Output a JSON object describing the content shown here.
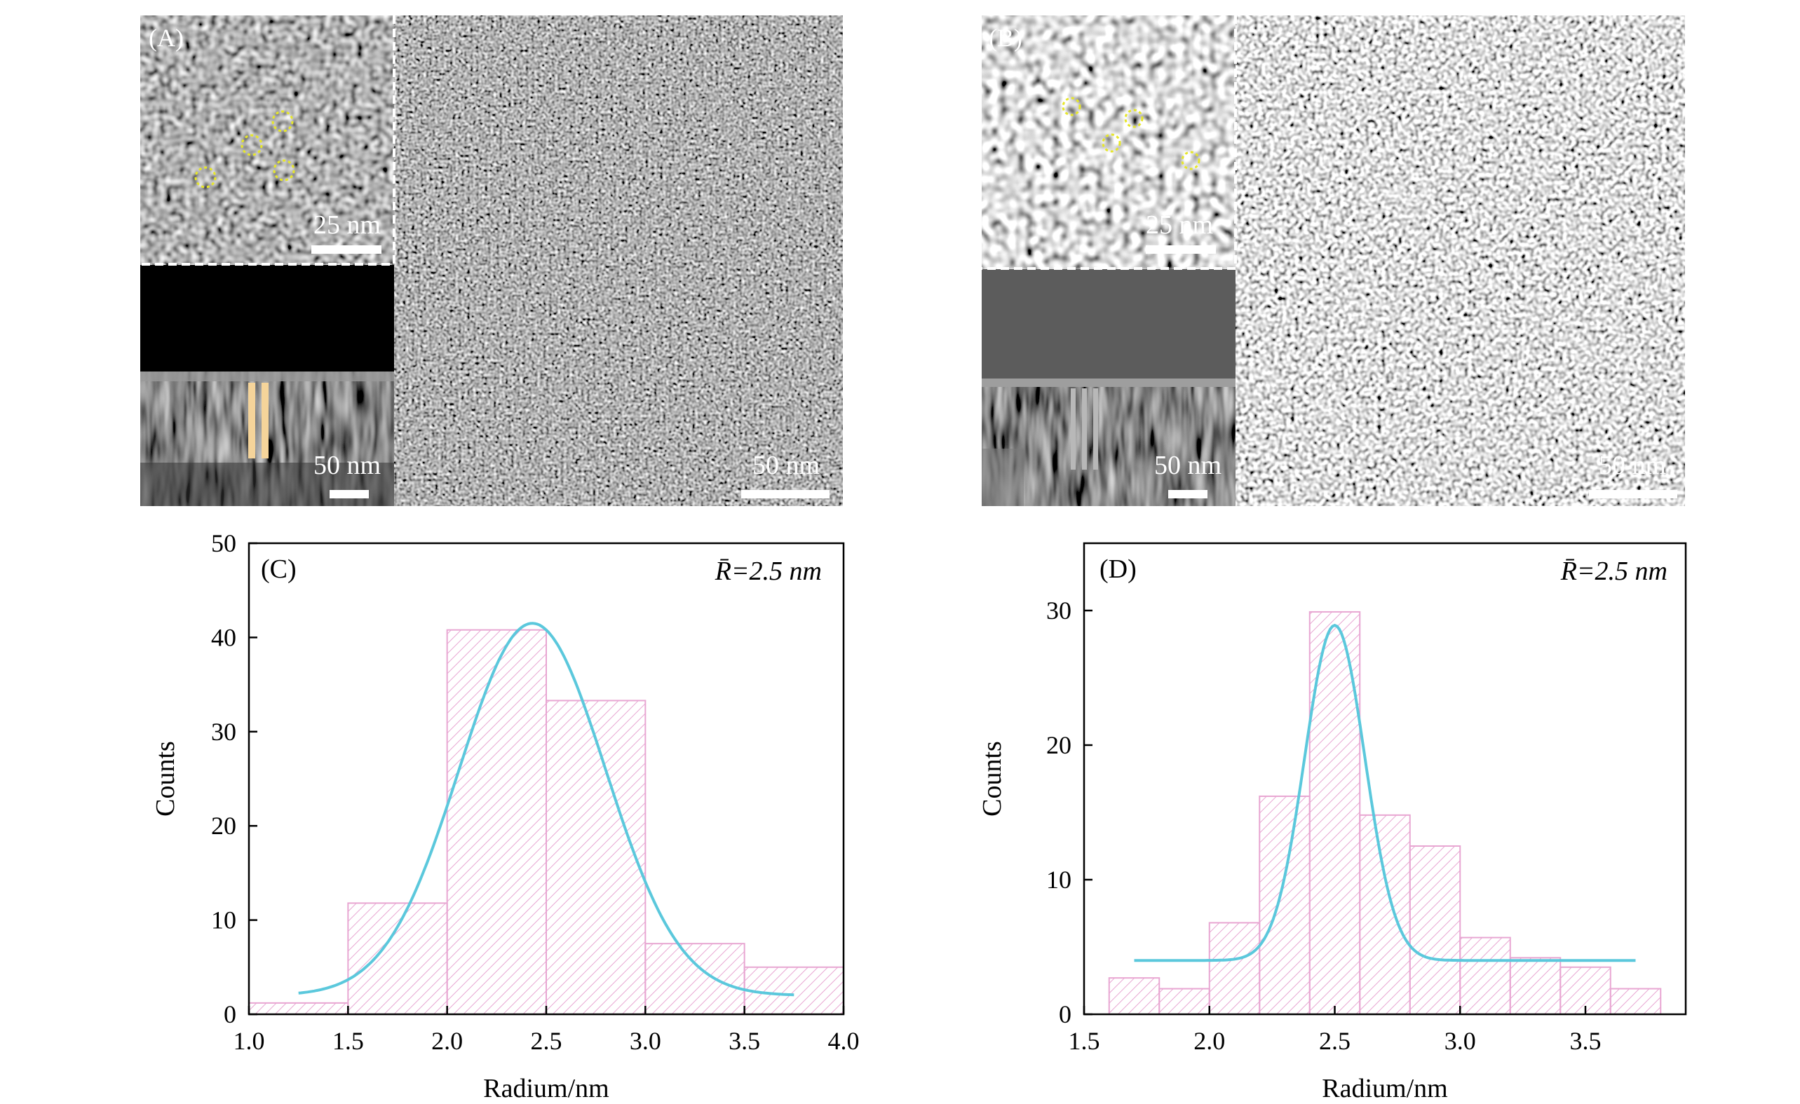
{
  "panels": {
    "A": {
      "label": "(A)",
      "inset_scalebar": "25 nm",
      "cross_section_scalebar": "50 nm",
      "main_scalebar": "50 nm"
    },
    "B": {
      "label": "(B)",
      "inset_scalebar": "25 nm",
      "cross_section_scalebar": "50 nm",
      "main_scalebar": "50 nm"
    }
  },
  "colors": {
    "bar_edge": "#e8a6d2",
    "bar_hatch": "#e8a6d2",
    "fit_curve": "#5bc8dc",
    "circle_marker": "#e6e62a",
    "column_marker_A": "#f5d49a",
    "column_marker_B": "#b8b8b8"
  },
  "chart_data": [
    {
      "panel_label": "(C)",
      "type": "bar",
      "annotation": "R̄=2.5 nm",
      "xlabel": "Radium/nm",
      "ylabel": "Counts",
      "xlim": [
        1.0,
        4.0
      ],
      "ylim": [
        0,
        50
      ],
      "xticks": [
        "1.0",
        "1.5",
        "2.0",
        "2.5",
        "3.0",
        "3.5",
        "4.0"
      ],
      "yticks": [
        "0",
        "10",
        "20",
        "30",
        "40",
        "50"
      ],
      "bins": [
        {
          "x0": 1.0,
          "x1": 1.5,
          "count": 1.2
        },
        {
          "x0": 1.5,
          "x1": 2.0,
          "count": 11.8
        },
        {
          "x0": 2.0,
          "x1": 2.5,
          "count": 40.8
        },
        {
          "x0": 2.5,
          "x1": 3.0,
          "count": 33.3
        },
        {
          "x0": 3.0,
          "x1": 3.5,
          "count": 7.5
        },
        {
          "x0": 3.5,
          "x1": 4.0,
          "count": 5.0
        }
      ],
      "fit": {
        "type": "gaussian",
        "base": 2.0,
        "amplitude": 39.5,
        "center": 2.43,
        "sigma": 0.37,
        "x_range": [
          1.25,
          3.75
        ]
      },
      "grid": false,
      "legend": "none"
    },
    {
      "panel_label": "(D)",
      "type": "bar",
      "annotation": "R̄=2.5 nm",
      "xlabel": "Radium/nm",
      "ylabel": "Counts",
      "xlim": [
        1.5,
        3.9
      ],
      "ylim": [
        0,
        35
      ],
      "xticks": [
        "1.5",
        "2.0",
        "2.5",
        "3.0",
        "3.5"
      ],
      "yticks": [
        "0",
        "10",
        "20",
        "30"
      ],
      "bins": [
        {
          "x0": 1.6,
          "x1": 1.8,
          "count": 2.7
        },
        {
          "x0": 1.8,
          "x1": 2.0,
          "count": 1.9
        },
        {
          "x0": 2.0,
          "x1": 2.2,
          "count": 6.8
        },
        {
          "x0": 2.2,
          "x1": 2.4,
          "count": 16.2
        },
        {
          "x0": 2.4,
          "x1": 2.6,
          "count": 29.9
        },
        {
          "x0": 2.6,
          "x1": 2.8,
          "count": 14.8
        },
        {
          "x0": 2.8,
          "x1": 3.0,
          "count": 12.5
        },
        {
          "x0": 3.0,
          "x1": 3.2,
          "count": 5.7
        },
        {
          "x0": 3.2,
          "x1": 3.4,
          "count": 4.2
        },
        {
          "x0": 3.4,
          "x1": 3.6,
          "count": 3.5
        },
        {
          "x0": 3.6,
          "x1": 3.8,
          "count": 1.9
        }
      ],
      "fit": {
        "type": "gaussian",
        "base": 4.0,
        "amplitude": 24.9,
        "center": 2.5,
        "sigma": 0.12,
        "x_range": [
          1.7,
          3.7
        ]
      },
      "grid": false,
      "legend": "none"
    }
  ]
}
